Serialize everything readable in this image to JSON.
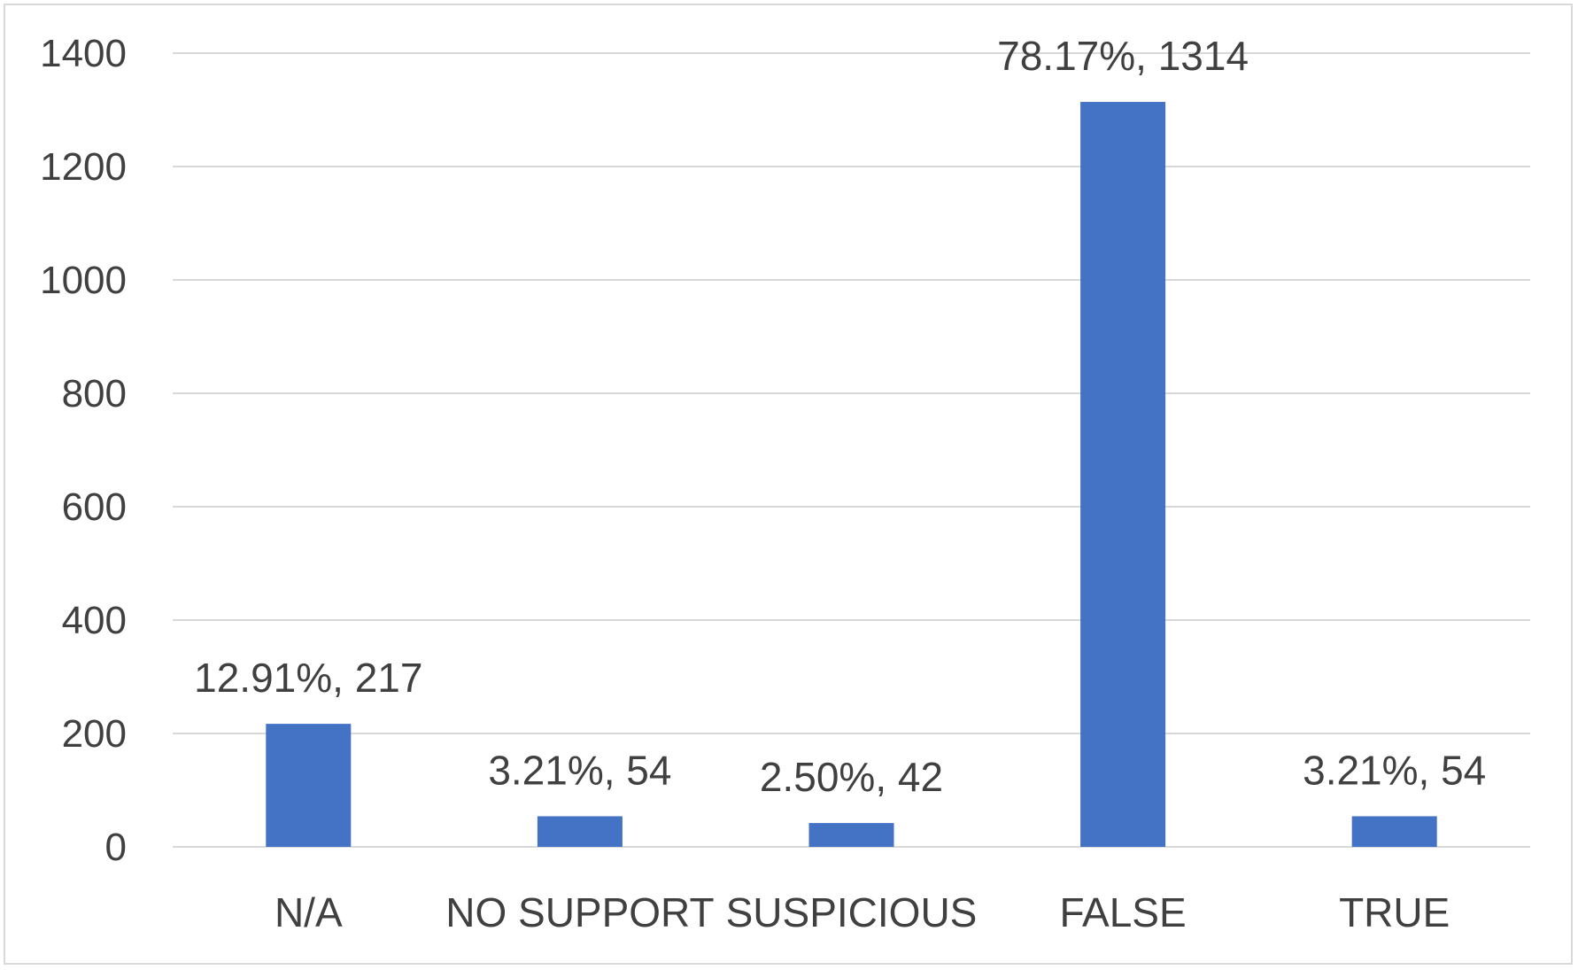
{
  "chart_data": {
    "type": "bar",
    "title": "",
    "xlabel": "",
    "ylabel": "",
    "categories": [
      "N/A",
      "NO SUPPORT",
      "SUSPICIOUS",
      "FALSE",
      "TRUE"
    ],
    "values": [
      217,
      54,
      42,
      1314,
      54
    ],
    "data_labels": [
      "12.91%, 217",
      "3.21%, 54",
      "2.50%, 42",
      "78.17%, 1314",
      "3.21%, 54"
    ],
    "ylim": [
      0,
      1400
    ],
    "yticks": [
      0,
      200,
      400,
      600,
      800,
      1000,
      1200,
      1400
    ],
    "grid": true,
    "legend": "none",
    "colors": {
      "bar": "#4472c4",
      "grid": "#d9d9d9",
      "text": "#404040",
      "border": "#d9d9d9"
    }
  }
}
